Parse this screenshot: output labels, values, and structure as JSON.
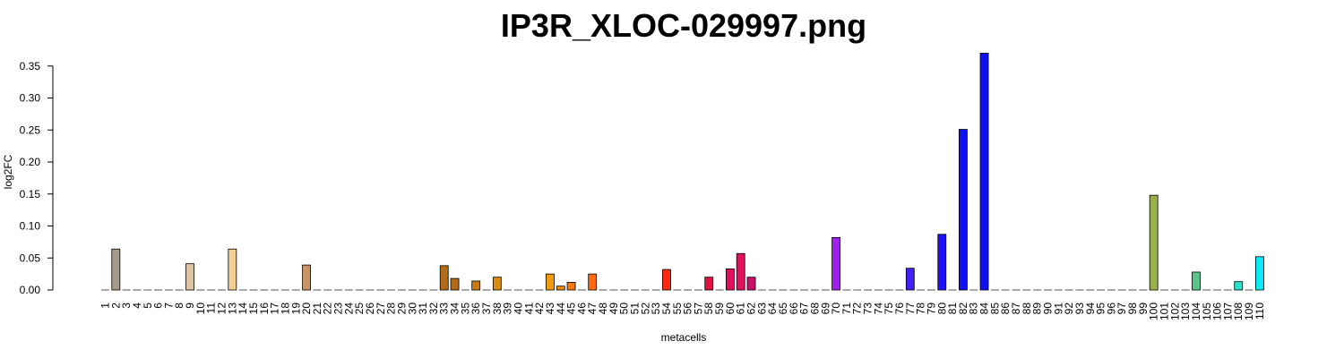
{
  "chart_data": {
    "type": "bar",
    "title": "IP3R_XLOC-029997.png",
    "xlabel": "metacells",
    "ylabel": "log2FC",
    "ylim": [
      0,
      0.37
    ],
    "yticks": [
      "0.00",
      "0.05",
      "0.10",
      "0.15",
      "0.20",
      "0.25",
      "0.30",
      "0.35"
    ],
    "grid": false,
    "legend": "none",
    "categories": [
      "1",
      "2",
      "3",
      "4",
      "5",
      "6",
      "7",
      "8",
      "9",
      "10",
      "11",
      "12",
      "13",
      "14",
      "15",
      "16",
      "17",
      "18",
      "19",
      "20",
      "21",
      "22",
      "23",
      "24",
      "25",
      "26",
      "27",
      "28",
      "29",
      "30",
      "31",
      "32",
      "33",
      "34",
      "35",
      "36",
      "37",
      "38",
      "39",
      "40",
      "41",
      "42",
      "43",
      "44",
      "45",
      "46",
      "47",
      "48",
      "49",
      "50",
      "51",
      "52",
      "53",
      "54",
      "55",
      "56",
      "57",
      "58",
      "59",
      "60",
      "61",
      "62",
      "63",
      "64",
      "65",
      "66",
      "67",
      "68",
      "69",
      "70",
      "71",
      "72",
      "73",
      "74",
      "75",
      "76",
      "77",
      "78",
      "79",
      "80",
      "81",
      "82",
      "83",
      "84",
      "85",
      "86",
      "87",
      "88",
      "89",
      "90",
      "91",
      "92",
      "93",
      "94",
      "95",
      "96",
      "97",
      "98",
      "99",
      "100",
      "101",
      "102",
      "103",
      "104",
      "105",
      "106",
      "107",
      "108",
      "109",
      "110"
    ],
    "values": [
      0,
      0.064,
      0,
      0,
      0,
      0,
      0,
      0,
      0.041,
      0,
      0,
      0,
      0.064,
      0,
      0,
      0,
      0,
      0,
      0,
      0.039,
      0,
      0,
      0,
      0,
      0,
      0,
      0,
      0,
      0,
      0,
      0,
      0,
      0.038,
      0.018,
      0,
      0.014,
      0,
      0.02,
      0,
      0,
      0,
      0,
      0.025,
      0.006,
      0.012,
      0,
      0.025,
      0,
      0,
      0,
      0,
      0,
      0,
      0.032,
      0,
      0,
      0,
      0.02,
      0,
      0.033,
      0.057,
      0.02,
      0,
      0,
      0,
      0,
      0,
      0,
      0,
      0.082,
      0,
      0,
      0,
      0,
      0,
      0,
      0.034,
      0,
      0,
      0.087,
      0,
      0.251,
      0,
      0.37,
      0,
      0,
      0,
      0,
      0,
      0,
      0,
      0,
      0,
      0,
      0,
      0,
      0,
      0,
      0,
      0.148,
      0,
      0,
      0,
      0.028,
      0,
      0,
      0,
      0.013,
      0,
      0.052
    ],
    "colors": [
      "#a89a8c",
      "#a89a8c",
      "#a89a8c",
      "#a89a8c",
      "#a89a8c",
      "#a89a8c",
      "#e0c5a2",
      "#e0c5a2",
      "#e0c5a2",
      "#e0c5a2",
      "#f2cf95",
      "#f2cf95",
      "#f2cf95",
      "#f2cf95",
      "#c99466",
      "#c99466",
      "#c99466",
      "#c99466",
      "#c99466",
      "#c99466",
      "#c99466",
      "#c99466",
      "#c99466",
      "#c99466",
      "#c99466",
      "#c99466",
      "#c99466",
      "#c99466",
      "#c99466",
      "#c99466",
      "#c99466",
      "#c99466",
      "#b26b16",
      "#b26b16",
      "#c97a10",
      "#c97a10",
      "#d98d10",
      "#d98d10",
      "#d98d10",
      "#d98d10",
      "#f29a10",
      "#f29a10",
      "#f29a10",
      "#f28a10",
      "#f27a10",
      "#f27a10",
      "#ff6a10",
      "#ff6a10",
      "#ff6a10",
      "#ff6a10",
      "#ff6a10",
      "#ff2a10",
      "#ff2a10",
      "#ff2a10",
      "#ff2a10",
      "#e01040",
      "#e01040",
      "#e01040",
      "#e01040",
      "#e0105a",
      "#e0105a",
      "#c8106a",
      "#a020f0",
      "#a020f0",
      "#a020f0",
      "#a020f0",
      "#a020f0",
      "#a020f0",
      "#a020f0",
      "#a020f0",
      "#7020f0",
      "#7020f0",
      "#7020f0",
      "#7020f0",
      "#7020f0",
      "#7020f0",
      "#4020f5",
      "#4020f5",
      "#2010f5",
      "#2010f5",
      "#1010f5",
      "#1010f5",
      "#1010f5",
      "#1010f5",
      "#1010f5",
      "#1010f5",
      "#1010f5",
      "#1010f5",
      "#1010f5",
      "#1010f5",
      "#1010f5",
      "#1010f5",
      "#1010f5",
      "#1010f5",
      "#1010f5",
      "#1010f5",
      "#1010f5",
      "#1010f5",
      "#9ab04a",
      "#9ab04a",
      "#9ab04a",
      "#5cc48a",
      "#5cc48a",
      "#5cc48a",
      "#5cc48a",
      "#5cc48a",
      "#2ae0d0",
      "#2ae0d0",
      "#10e8f8",
      "#10e8f8"
    ]
  }
}
